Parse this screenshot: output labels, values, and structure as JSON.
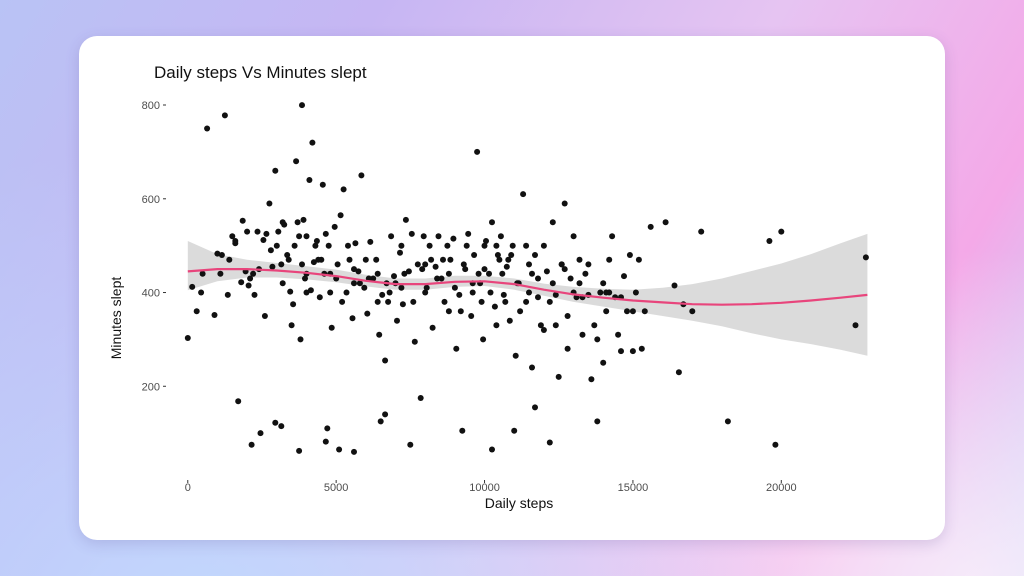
{
  "chart_data": {
    "type": "scatter",
    "title": "Daily steps Vs Minutes slept",
    "xlabel": "Daily steps",
    "ylabel": "Minutes slept",
    "xlim": [
      -700,
      24000
    ],
    "ylim": [
      0,
      830
    ],
    "xticks": [
      "0",
      "5000",
      "10000",
      "15000",
      "20000"
    ],
    "xtick_values": [
      0,
      5000,
      10000,
      15000,
      20000
    ],
    "yticks": [
      "200",
      "400",
      "600",
      "800"
    ],
    "ytick_values": [
      200,
      400,
      600,
      800
    ],
    "grid": false,
    "colors": {
      "points": "#111111",
      "smooth": "#e8457c",
      "band": "#d9d9d9"
    },
    "smooth": {
      "x": [
        0,
        1000,
        2000,
        3000,
        4000,
        5000,
        6000,
        7000,
        8000,
        9000,
        10000,
        11000,
        12000,
        13000,
        14000,
        15000,
        16000,
        17000,
        18000,
        19000,
        20000,
        21000,
        22000,
        22900
      ],
      "y": [
        445,
        450,
        450,
        447,
        442,
        435,
        425,
        418,
        418,
        423,
        424,
        418,
        406,
        396,
        389,
        383,
        379,
        375,
        374,
        375,
        378,
        383,
        389,
        395
      ],
      "lower": [
        405,
        424,
        432,
        432,
        428,
        422,
        413,
        406,
        406,
        412,
        414,
        406,
        393,
        380,
        370,
        360,
        350,
        340,
        328,
        313,
        300,
        290,
        278,
        265
      ],
      "upper": [
        510,
        482,
        470,
        463,
        456,
        449,
        438,
        430,
        430,
        436,
        436,
        430,
        419,
        412,
        408,
        406,
        410,
        418,
        430,
        446,
        462,
        482,
        505,
        525
      ]
    },
    "points": [
      [
        0,
        303
      ],
      [
        150,
        412
      ],
      [
        300,
        360
      ],
      [
        450,
        400
      ],
      [
        650,
        750
      ],
      [
        900,
        352
      ],
      [
        1000,
        483
      ],
      [
        1150,
        480
      ],
      [
        1250,
        778
      ],
      [
        1350,
        395
      ],
      [
        1500,
        520
      ],
      [
        1600,
        505
      ],
      [
        1700,
        168
      ],
      [
        1800,
        422
      ],
      [
        1850,
        553
      ],
      [
        1950,
        445
      ],
      [
        2050,
        415
      ],
      [
        2150,
        75
      ],
      [
        2250,
        395
      ],
      [
        2350,
        530
      ],
      [
        2450,
        100
      ],
      [
        2550,
        512
      ],
      [
        2650,
        525
      ],
      [
        2750,
        590
      ],
      [
        2850,
        455
      ],
      [
        2950,
        660
      ],
      [
        3050,
        530
      ],
      [
        3150,
        460
      ],
      [
        3250,
        545
      ],
      [
        3350,
        480
      ],
      [
        3450,
        402
      ],
      [
        3500,
        330
      ],
      [
        3550,
        375
      ],
      [
        3650,
        680
      ],
      [
        3700,
        550
      ],
      [
        3750,
        520
      ],
      [
        3800,
        300
      ],
      [
        3850,
        460
      ],
      [
        3900,
        555
      ],
      [
        3950,
        430
      ],
      [
        4000,
        520
      ],
      [
        4100,
        640
      ],
      [
        4150,
        405
      ],
      [
        4200,
        720
      ],
      [
        4250,
        465
      ],
      [
        4350,
        510
      ],
      [
        4450,
        390
      ],
      [
        4550,
        630
      ],
      [
        4600,
        440
      ],
      [
        4650,
        525
      ],
      [
        4750,
        500
      ],
      [
        4850,
        325
      ],
      [
        4950,
        540
      ],
      [
        5050,
        460
      ],
      [
        5150,
        565
      ],
      [
        5250,
        620
      ],
      [
        5350,
        400
      ],
      [
        5450,
        470
      ],
      [
        5550,
        345
      ],
      [
        5650,
        505
      ],
      [
        5750,
        445
      ],
      [
        5850,
        650
      ],
      [
        5950,
        410
      ],
      [
        6050,
        355
      ],
      [
        6150,
        508
      ],
      [
        6250,
        430
      ],
      [
        6350,
        470
      ],
      [
        6450,
        310
      ],
      [
        6550,
        395
      ],
      [
        6650,
        255
      ],
      [
        6750,
        380
      ],
      [
        6850,
        520
      ],
      [
        6950,
        435
      ],
      [
        7050,
        340
      ],
      [
        7150,
        485
      ],
      [
        7250,
        375
      ],
      [
        7350,
        555
      ],
      [
        7450,
        445
      ],
      [
        7550,
        525
      ],
      [
        7650,
        295
      ],
      [
        7750,
        460
      ],
      [
        7850,
        175
      ],
      [
        7950,
        520
      ],
      [
        8050,
        410
      ],
      [
        8150,
        500
      ],
      [
        8250,
        325
      ],
      [
        8350,
        455
      ],
      [
        8450,
        520
      ],
      [
        8550,
        430
      ],
      [
        8650,
        380
      ],
      [
        8750,
        500
      ],
      [
        8850,
        470
      ],
      [
        8950,
        515
      ],
      [
        9050,
        280
      ],
      [
        9150,
        395
      ],
      [
        9250,
        105
      ],
      [
        9350,
        450
      ],
      [
        9450,
        525
      ],
      [
        9550,
        350
      ],
      [
        9650,
        480
      ],
      [
        9750,
        700
      ],
      [
        9850,
        420
      ],
      [
        9950,
        300
      ],
      [
        10050,
        510
      ],
      [
        10150,
        440
      ],
      [
        10250,
        550
      ],
      [
        10350,
        370
      ],
      [
        10450,
        480
      ],
      [
        10550,
        520
      ],
      [
        10650,
        395
      ],
      [
        10750,
        455
      ],
      [
        10850,
        340
      ],
      [
        10950,
        500
      ],
      [
        11050,
        265
      ],
      [
        11150,
        420
      ],
      [
        11300,
        610
      ],
      [
        11400,
        380
      ],
      [
        11500,
        460
      ],
      [
        11600,
        240
      ],
      [
        11700,
        155
      ],
      [
        11800,
        430
      ],
      [
        11900,
        330
      ],
      [
        12000,
        500
      ],
      [
        12100,
        445
      ],
      [
        12200,
        80
      ],
      [
        12300,
        550
      ],
      [
        12400,
        395
      ],
      [
        12500,
        220
      ],
      [
        12600,
        460
      ],
      [
        12700,
        590
      ],
      [
        12800,
        350
      ],
      [
        12900,
        430
      ],
      [
        13000,
        520
      ],
      [
        13100,
        390
      ],
      [
        13200,
        470
      ],
      [
        13300,
        310
      ],
      [
        13400,
        440
      ],
      [
        13500,
        395
      ],
      [
        13600,
        215
      ],
      [
        13700,
        330
      ],
      [
        13800,
        125
      ],
      [
        13900,
        400
      ],
      [
        14000,
        250
      ],
      [
        14100,
        360
      ],
      [
        14200,
        470
      ],
      [
        14300,
        520
      ],
      [
        14400,
        390
      ],
      [
        14500,
        310
      ],
      [
        14600,
        275
      ],
      [
        14700,
        435
      ],
      [
        14800,
        360
      ],
      [
        14900,
        480
      ],
      [
        15000,
        275
      ],
      [
        15100,
        400
      ],
      [
        15200,
        470
      ],
      [
        15300,
        280
      ],
      [
        15400,
        360
      ],
      [
        15600,
        540
      ],
      [
        16100,
        550
      ],
      [
        16400,
        415
      ],
      [
        16550,
        230
      ],
      [
        16700,
        375
      ],
      [
        17000,
        360
      ],
      [
        17300,
        530
      ],
      [
        18200,
        125
      ],
      [
        19600,
        510
      ],
      [
        19800,
        75
      ],
      [
        20000,
        530
      ],
      [
        22500,
        330
      ],
      [
        22850,
        475
      ],
      [
        3750,
        62
      ],
      [
        4700,
        110
      ],
      [
        5100,
        65
      ],
      [
        5600,
        60
      ],
      [
        6500,
        125
      ],
      [
        6650,
        140
      ],
      [
        3150,
        115
      ],
      [
        2950,
        122
      ],
      [
        4650,
        82
      ],
      [
        7500,
        75
      ],
      [
        10250,
        65
      ],
      [
        11000,
        105
      ],
      [
        3850,
        800
      ],
      [
        2200,
        440
      ],
      [
        3000,
        500
      ],
      [
        4500,
        470
      ],
      [
        5200,
        380
      ],
      [
        6000,
        470
      ],
      [
        6800,
        400
      ],
      [
        7600,
        380
      ],
      [
        8400,
        430
      ],
      [
        9200,
        360
      ],
      [
        10000,
        450
      ],
      [
        10800,
        470
      ],
      [
        11600,
        440
      ],
      [
        12400,
        330
      ],
      [
        13200,
        420
      ],
      [
        14000,
        420
      ],
      [
        10400,
        500
      ],
      [
        9600,
        400
      ],
      [
        8800,
        440
      ],
      [
        8000,
        400
      ],
      [
        7200,
        410
      ],
      [
        6400,
        440
      ],
      [
        5600,
        450
      ],
      [
        4800,
        440
      ],
      [
        4000,
        440
      ],
      [
        3200,
        420
      ],
      [
        2400,
        450
      ],
      [
        1600,
        510
      ],
      [
        10600,
        440
      ],
      [
        11400,
        500
      ],
      [
        12200,
        380
      ],
      [
        13000,
        400
      ],
      [
        13800,
        300
      ],
      [
        12800,
        280
      ],
      [
        12000,
        320
      ],
      [
        11200,
        360
      ],
      [
        10400,
        330
      ],
      [
        9600,
        420
      ],
      [
        8800,
        360
      ],
      [
        8000,
        460
      ],
      [
        7200,
        500
      ],
      [
        6400,
        380
      ],
      [
        5600,
        420
      ],
      [
        4800,
        400
      ],
      [
        4000,
        400
      ],
      [
        3200,
        550
      ],
      [
        2600,
        350
      ],
      [
        2000,
        530
      ],
      [
        1100,
        440
      ],
      [
        500,
        440
      ],
      [
        9800,
        440
      ],
      [
        10200,
        400
      ],
      [
        10700,
        380
      ],
      [
        11500,
        400
      ],
      [
        12700,
        450
      ],
      [
        13300,
        390
      ],
      [
        14200,
        400
      ],
      [
        15000,
        360
      ],
      [
        12600,
        460
      ],
      [
        11800,
        390
      ],
      [
        11100,
        420
      ],
      [
        10900,
        480
      ],
      [
        9900,
        380
      ],
      [
        9300,
        460
      ],
      [
        8600,
        470
      ],
      [
        7900,
        450
      ],
      [
        7300,
        440
      ],
      [
        6700,
        420
      ],
      [
        6100,
        430
      ],
      [
        5400,
        500
      ],
      [
        4300,
        500
      ],
      [
        3400,
        470
      ],
      [
        2800,
        490
      ],
      [
        2100,
        430
      ],
      [
        1400,
        470
      ],
      [
        9400,
        500
      ],
      [
        8200,
        470
      ],
      [
        7000,
        420
      ],
      [
        5800,
        420
      ],
      [
        5000,
        430
      ],
      [
        4400,
        470
      ],
      [
        3600,
        500
      ],
      [
        9000,
        410
      ],
      [
        10000,
        500
      ],
      [
        10500,
        470
      ],
      [
        11700,
        480
      ],
      [
        12300,
        420
      ],
      [
        13500,
        460
      ],
      [
        14100,
        400
      ],
      [
        14600,
        390
      ]
    ]
  }
}
